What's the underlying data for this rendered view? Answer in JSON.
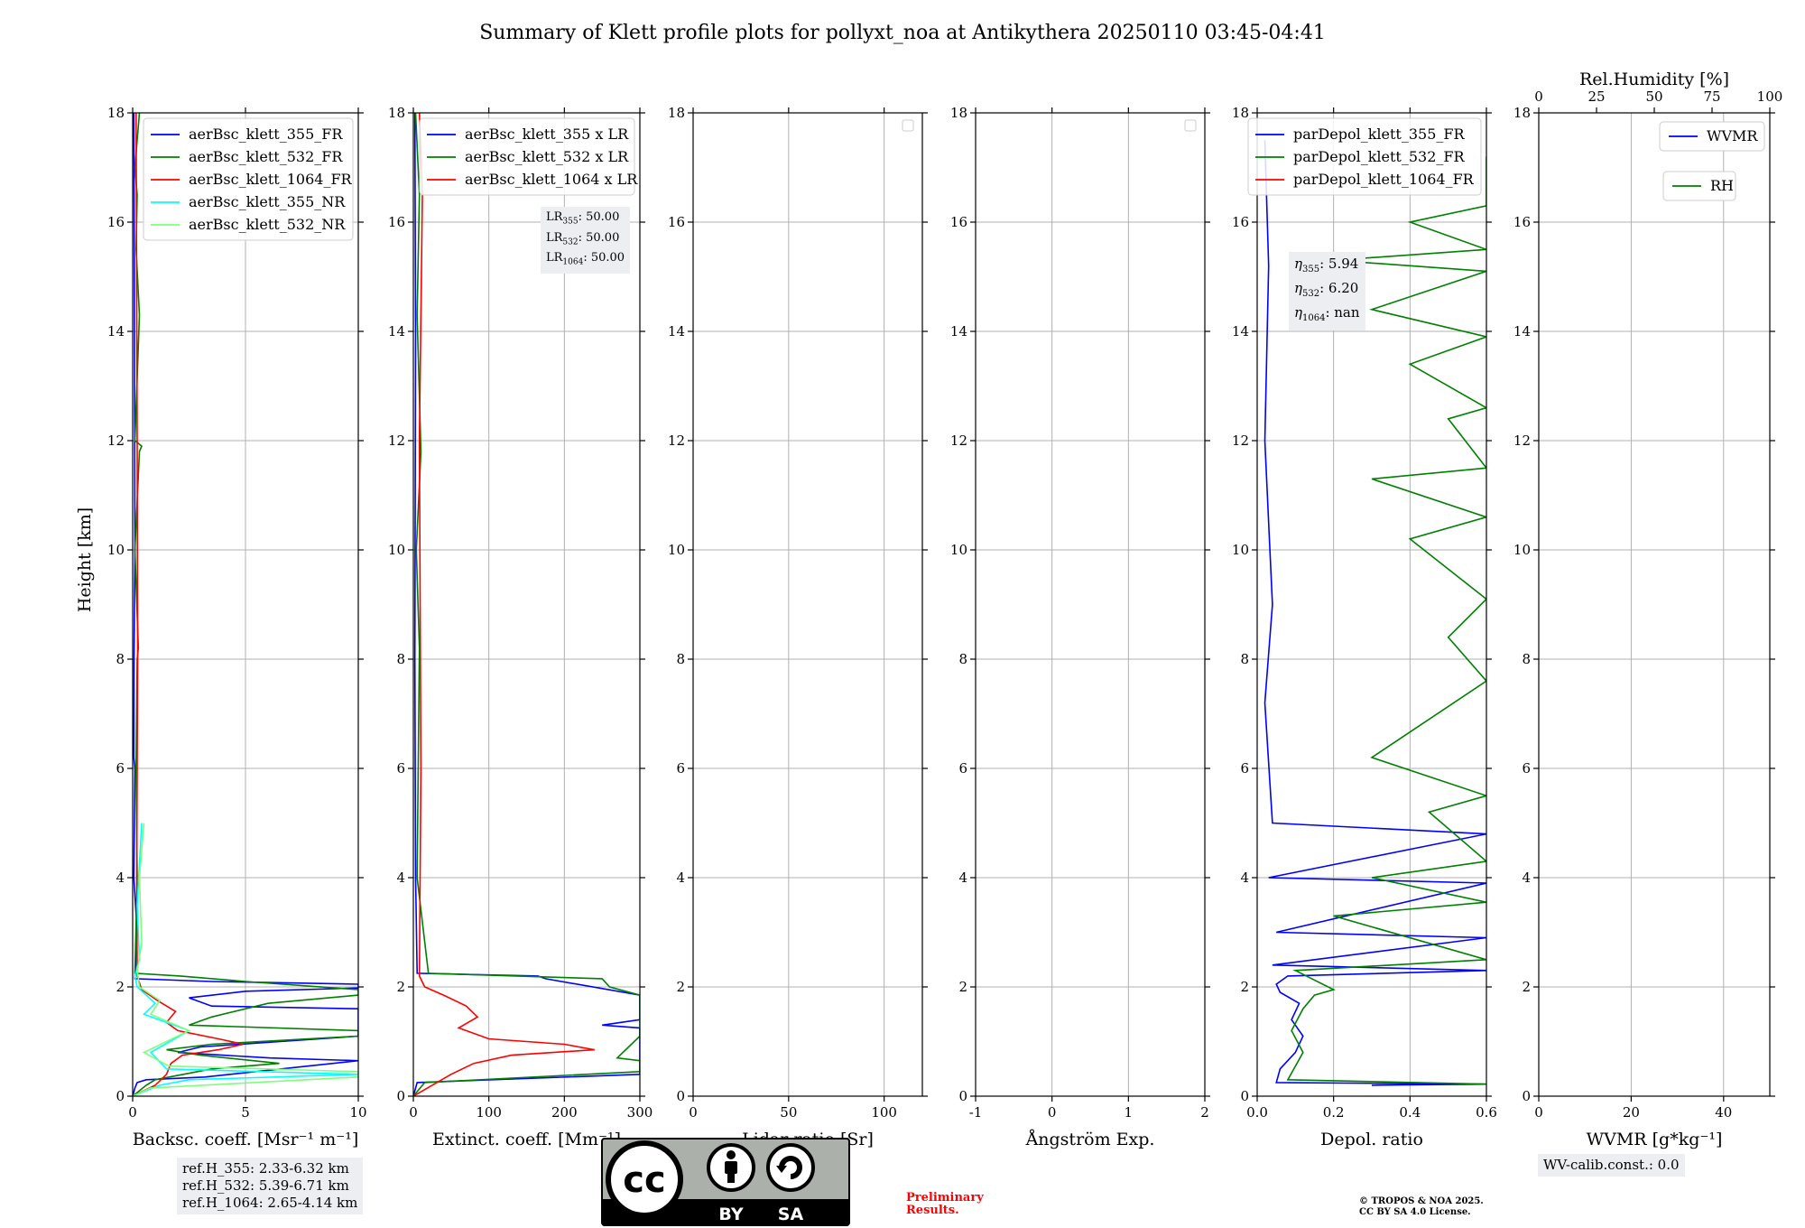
{
  "figure": {
    "title": "Summary of Klett profile plots for pollyxt_noa at Antikythera 20250110 03:45-04:41",
    "height_label": "Height [km]"
  },
  "chart_data": [
    {
      "type": "line",
      "panel": "backscatter",
      "xlabel": "Backsc. coeff. [Msr⁻¹ m⁻¹]",
      "ylabel": "Height [km]",
      "xlim": [
        0,
        10
      ],
      "ylim": [
        0,
        18
      ],
      "xticks": [
        0,
        5,
        10
      ],
      "yticks": [
        0,
        2,
        4,
        6,
        8,
        10,
        12,
        14,
        16,
        18
      ],
      "grid": true,
      "legend": "top-right",
      "series": [
        {
          "name": "aerBsc_klett_355_FR",
          "color": "#0000ff",
          "x": [
            0,
            0.1,
            0.2,
            0.6,
            3.2,
            10,
            6.1,
            2.0,
            3.0,
            10,
            10,
            3.5,
            2.5,
            5.0,
            10,
            10,
            3.5,
            0.1,
            0.2,
            0.05,
            0.1,
            0.05,
            0.06,
            0.1,
            0.08,
            0.05
          ],
          "y": [
            0.0,
            0.15,
            0.25,
            0.3,
            0.35,
            0.65,
            0.7,
            0.8,
            0.9,
            1.1,
            1.6,
            1.65,
            1.8,
            1.92,
            1.98,
            2.05,
            2.1,
            2.15,
            3.0,
            4.0,
            6.0,
            6.2,
            8.0,
            10.0,
            14.0,
            18.0
          ]
        },
        {
          "name": "aerBsc_klett_532_FR",
          "color": "#008000",
          "x": [
            0,
            0.3,
            0.6,
            1.0,
            3.5,
            6.5,
            3.0,
            1.5,
            3.5,
            10,
            10,
            2.5,
            3.5,
            6.0,
            10,
            10,
            5.0,
            2.1,
            0.1,
            0.2,
            0.15,
            0.2,
            0.25,
            0.1,
            0.3,
            0.4,
            0.1,
            0.3,
            0.15,
            0.2,
            0.1,
            0.3
          ],
          "y": [
            0.0,
            0.1,
            0.2,
            0.3,
            0.5,
            0.6,
            0.75,
            0.85,
            0.95,
            1.1,
            1.2,
            1.3,
            1.45,
            1.7,
            1.85,
            1.95,
            2.1,
            2.2,
            2.25,
            4.0,
            6.0,
            8.0,
            8.2,
            10.0,
            11.8,
            11.9,
            12.0,
            14.3,
            15.5,
            16.5,
            17.0,
            18.0
          ]
        },
        {
          "name": "aerBsc_klett_1064_FR",
          "color": "#ff0000",
          "x": [
            0,
            1.0,
            1.5,
            1.7,
            2.2,
            3.8,
            4.9,
            3.8,
            2.0,
            1.5,
            1.9,
            1.1,
            0.4,
            0.2,
            0.18,
            0.22,
            0.2,
            0.15
          ],
          "y": [
            0.0,
            0.2,
            0.4,
            0.6,
            0.75,
            0.85,
            0.95,
            1.05,
            1.2,
            1.35,
            1.55,
            1.75,
            1.95,
            2.2,
            4.0,
            8.0,
            12.0,
            18.0
          ]
        },
        {
          "name": "aerBsc_klett_355_NR",
          "color": "#00ffff",
          "x": [
            0,
            1.2,
            2.5,
            10,
            1.5,
            0.8,
            2.5,
            0.5,
            1.0,
            0.2,
            0.1,
            0.3,
            0.2,
            0.4
          ],
          "y": [
            0.0,
            0.2,
            0.3,
            0.4,
            0.5,
            0.8,
            1.2,
            1.5,
            1.7,
            2.0,
            2.2,
            2.5,
            3.5,
            5.0
          ]
        },
        {
          "name": "aerBsc_klett_532_NR",
          "color": "#7dff7d",
          "x": [
            0,
            0.8,
            10,
            10,
            1.6,
            0.5,
            2.5,
            0.8,
            1.2,
            0.3,
            0.2,
            0.4,
            0.3,
            0.5
          ],
          "y": [
            0.0,
            0.15,
            0.35,
            0.45,
            0.55,
            0.8,
            1.2,
            1.5,
            1.75,
            2.0,
            2.3,
            2.8,
            4.0,
            5.0
          ]
        }
      ]
    },
    {
      "type": "line",
      "panel": "extinction",
      "xlabel": "Extinct. coeff. [Mm⁻¹]",
      "xlim": [
        0,
        300
      ],
      "ylim": [
        0,
        18
      ],
      "xticks": [
        0,
        100,
        200,
        300
      ],
      "yticks": [
        0,
        2,
        4,
        6,
        8,
        10,
        12,
        14,
        16,
        18
      ],
      "grid": true,
      "legend": "top-right",
      "series": [
        {
          "name": "aerBsc_klett_355 x LR",
          "color": "#0000ff",
          "x": [
            0,
            5,
            300,
            300,
            250,
            300,
            300,
            175,
            165,
            5,
            3,
            2,
            3,
            2
          ],
          "y": [
            0.0,
            0.25,
            0.4,
            1.25,
            1.3,
            1.4,
            1.85,
            2.15,
            2.2,
            2.25,
            4.0,
            8.0,
            14.0,
            18.0
          ]
        },
        {
          "name": "aerBsc_klett_532 x LR",
          "color": "#008000",
          "x": [
            0,
            15,
            300,
            300,
            270,
            300,
            300,
            260,
            250,
            20,
            5,
            8,
            4,
            10,
            5,
            8,
            3
          ],
          "y": [
            0.0,
            0.25,
            0.45,
            0.65,
            0.7,
            1.1,
            1.85,
            2.0,
            2.15,
            2.25,
            4.0,
            8.2,
            10.0,
            11.8,
            14.3,
            16.5,
            18.0
          ]
        },
        {
          "name": "aerBsc_klett_1064 x LR",
          "color": "#ff0000",
          "x": [
            0,
            25,
            50,
            80,
            130,
            240,
            200,
            100,
            60,
            85,
            70,
            40,
            15,
            8,
            10,
            8,
            12,
            8
          ],
          "y": [
            0.0,
            0.2,
            0.4,
            0.6,
            0.75,
            0.85,
            0.95,
            1.05,
            1.25,
            1.45,
            1.65,
            1.85,
            2.0,
            2.2,
            6.0,
            12.0,
            16.5,
            18.0
          ]
        }
      ]
    },
    {
      "type": "line",
      "panel": "lidar-ratio",
      "xlabel": "Lidar ratio [Sr]",
      "xlim": [
        0,
        120
      ],
      "ylim": [
        0,
        18
      ],
      "xticks": [
        0,
        50,
        100
      ],
      "yticks": [
        0,
        2,
        4,
        6,
        8,
        10,
        12,
        14,
        16,
        18
      ],
      "grid": true,
      "legend": "top-right",
      "series": []
    },
    {
      "type": "line",
      "panel": "angstrom",
      "xlabel": "Ångström Exp.",
      "xlim": [
        -1,
        2
      ],
      "ylim": [
        0,
        18
      ],
      "xticks": [
        -1,
        0,
        1,
        2
      ],
      "yticks": [
        0,
        2,
        4,
        6,
        8,
        10,
        12,
        14,
        16,
        18
      ],
      "grid": true,
      "legend": "top-right",
      "series": []
    },
    {
      "type": "line",
      "panel": "depol",
      "xlabel": "Depol. ratio",
      "xlim": [
        0,
        0.6
      ],
      "ylim": [
        0,
        18
      ],
      "xticks": [
        0.0,
        0.2,
        0.4,
        0.6
      ],
      "yticks": [
        0,
        2,
        4,
        6,
        8,
        10,
        12,
        14,
        16,
        18
      ],
      "grid": true,
      "legend": "top-right",
      "series": [
        {
          "name": "parDepol_klett_355_FR",
          "color": "#0000ff",
          "x": [
            0.3,
            0.6,
            0.05,
            0.06,
            0.1,
            0.12,
            0.09,
            0.11,
            0.06,
            0.05,
            0.08,
            0.6,
            0.04,
            0.6,
            0.05,
            0.6,
            0.03,
            0.6,
            0.04,
            0.02,
            0.04,
            0.02,
            0.03,
            0.02
          ],
          "y": [
            0.2,
            0.22,
            0.25,
            0.5,
            0.8,
            1.1,
            1.4,
            1.7,
            1.9,
            2.05,
            2.2,
            2.3,
            2.4,
            2.9,
            3.0,
            3.9,
            4.0,
            4.8,
            5.0,
            7.2,
            9.0,
            12.0,
            15.2,
            17.5
          ]
        },
        {
          "name": "parDepol_klett_532_FR",
          "color": "#008000",
          "x": [
            0.6,
            0.08,
            0.12,
            0.09,
            0.12,
            0.15,
            0.2,
            0.1,
            0.6,
            0.2,
            0.6,
            0.3,
            0.6,
            0.45,
            0.6,
            0.3,
            0.6,
            0.5,
            0.6,
            0.4,
            0.6,
            0.3,
            0.6,
            0.5,
            0.6,
            0.4,
            0.6,
            0.3,
            0.6,
            0.2,
            0.6,
            0.4,
            0.6,
            0.6,
            0.6
          ],
          "y": [
            0.22,
            0.3,
            0.8,
            1.2,
            1.6,
            1.85,
            1.95,
            2.3,
            2.5,
            3.3,
            3.55,
            4.0,
            4.3,
            5.2,
            5.5,
            6.2,
            7.6,
            8.4,
            9.1,
            10.2,
            10.6,
            11.3,
            11.5,
            12.4,
            12.6,
            13.4,
            13.9,
            14.4,
            15.1,
            15.3,
            15.5,
            16.0,
            16.3,
            16.6,
            17.2
          ]
        },
        {
          "name": "parDepol_klett_1064_FR",
          "color": "#ff0000",
          "x": [],
          "y": []
        }
      ]
    },
    {
      "type": "line",
      "panel": "wvmr",
      "xlabel": "WVMR [g*kg⁻¹]",
      "x2label": "Rel.Humidity [%]",
      "xlim": [
        0,
        50
      ],
      "x2lim": [
        0,
        100
      ],
      "ylim": [
        0,
        18
      ],
      "xticks": [
        0,
        20,
        40
      ],
      "x2ticks": [
        0,
        25,
        50,
        75,
        100
      ],
      "yticks": [
        0,
        2,
        4,
        6,
        8,
        10,
        12,
        14,
        16,
        18
      ],
      "grid": true,
      "series": [
        {
          "name": "WVMR",
          "color": "#0000ff",
          "x": [],
          "y": []
        },
        {
          "name": "RH",
          "color": "#008000",
          "x": [],
          "y": []
        }
      ]
    }
  ],
  "annotations": {
    "lr": {
      "l1_sym": "LR",
      "l1_sub": "355",
      "l1_val": ": 50.00",
      "l2_sym": "LR",
      "l2_sub": "532",
      "l2_val": ": 50.00",
      "l3_sym": "LR",
      "l3_sub": "1064",
      "l3_val": ": 50.00"
    },
    "eta": {
      "l1_sym": "η",
      "l1_sub": "355",
      "l1_val": ": 5.94",
      "l2_sym": "η",
      "l2_sub": "532",
      "l2_val": ": 6.20",
      "l3_sym": "η",
      "l3_sub": "1064",
      "l3_val": ": nan"
    },
    "refh": {
      "line1": "ref.H_355: 2.33-6.32 km",
      "line2": "ref.H_532: 5.39-6.71 km",
      "line3": "ref.H_1064: 2.65-4.14 km"
    },
    "wv_calib": "WV-calib.const.: 0.0",
    "preliminary_1": "Preliminary",
    "preliminary_2": "Results.",
    "copyright_1": "© TROPOS & NOA 2025.",
    "copyright_2": "CC BY SA 4.0 License."
  },
  "license_badge": {
    "main": "cc",
    "by": "BY",
    "sa": "SA",
    "colors": {
      "body": "#abb1aa",
      "band": "#000000",
      "border": "#000000"
    }
  },
  "colors": {
    "preliminary": "#ff0000",
    "grid": "#b0b0b0",
    "legend_bg": "#ffffff",
    "textbox_bg": "#eceef2"
  }
}
